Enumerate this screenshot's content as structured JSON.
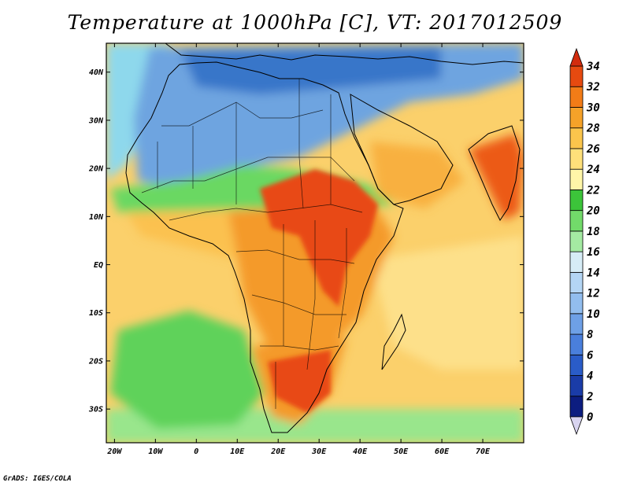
{
  "title": "Temperature at 1000hPa [C], VT: 2017012509",
  "credit": "GrADS: IGES/COLA",
  "map": {
    "lon_range": [
      -22,
      80
    ],
    "lat_range": [
      -37,
      46
    ],
    "lon_ticks": [
      {
        "lon": -20,
        "label": "20W"
      },
      {
        "lon": -10,
        "label": "10W"
      },
      {
        "lon": 0,
        "label": "0"
      },
      {
        "lon": 10,
        "label": "10E"
      },
      {
        "lon": 20,
        "label": "20E"
      },
      {
        "lon": 30,
        "label": "30E"
      },
      {
        "lon": 40,
        "label": "40E"
      },
      {
        "lon": 50,
        "label": "50E"
      },
      {
        "lon": 60,
        "label": "60E"
      },
      {
        "lon": 70,
        "label": "70E"
      }
    ],
    "lat_ticks": [
      {
        "lat": 40,
        "label": "40N"
      },
      {
        "lat": 30,
        "label": "30N"
      },
      {
        "lat": 20,
        "label": "20N"
      },
      {
        "lat": 10,
        "label": "10N"
      },
      {
        "lat": 0,
        "label": "EQ"
      },
      {
        "lat": -10,
        "label": "10S"
      },
      {
        "lat": -20,
        "label": "20S"
      },
      {
        "lat": -30,
        "label": "30S"
      }
    ]
  },
  "colorbar": {
    "levels": [
      0,
      2,
      4,
      6,
      8,
      10,
      12,
      14,
      16,
      18,
      20,
      22,
      24,
      26,
      28,
      30,
      32,
      34
    ],
    "colors": [
      "#0c1d80",
      "#1a3ca8",
      "#2a5cc8",
      "#4a7fdc",
      "#6ea0e6",
      "#92bdee",
      "#b4d5f4",
      "#d6ecf6",
      "#a4eaa2",
      "#72da6a",
      "#3cc43a",
      "#fff6a8",
      "#ffe07a",
      "#fbc54c",
      "#f5a229",
      "#f27c17",
      "#e64a10"
    ],
    "top_color": "#d22c0e",
    "bottom_color": "#d8d4f0"
  },
  "fields": {
    "ocean_color": "#fbd06b",
    "atlantic_north_color": "#8ed8ec",
    "mediterranean_color": "#2f6ec4",
    "sahara_color": "#6ea4e0",
    "sahel_color": "#6ad862",
    "west_africa_color": "#fbc14f",
    "central_africa_color": "#f49a2a",
    "east_africa_color": "#e84a13",
    "south_atlantic_color": "#5fd25a",
    "indian_ocean_color": "#fde08a",
    "southern_ocean_color": "#8ee890",
    "india_color": "#ec5a18",
    "arabia_color": "#f8b040"
  }
}
